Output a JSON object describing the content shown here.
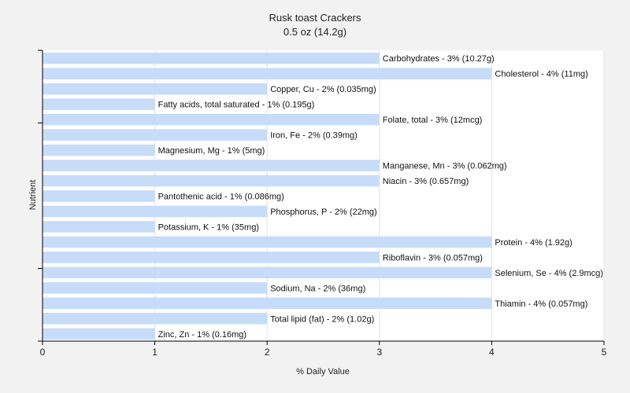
{
  "chart_data": {
    "type": "bar",
    "orientation": "horizontal",
    "title": "Rusk toast Crackers",
    "subtitle": "0.5 oz (14.2g)",
    "xlabel": "% Daily Value",
    "ylabel": "Nutrient",
    "xlim": [
      0,
      5
    ],
    "xticks": [
      0,
      1,
      2,
      3,
      4,
      5
    ],
    "grid": true,
    "bar_color": "#c6dcf9",
    "categories": [
      "Carbohydrates",
      "Cholesterol",
      "Copper, Cu",
      "Fatty acids, total saturated",
      "Folate, total",
      "Iron, Fe",
      "Magnesium, Mg",
      "Manganese, Mn",
      "Niacin",
      "Pantothenic acid",
      "Phosphorus, P",
      "Potassium, K",
      "Protein",
      "Riboflavin",
      "Selenium, Se",
      "Sodium, Na",
      "Thiamin",
      "Total lipid (fat)",
      "Zinc, Zn"
    ],
    "values": [
      3,
      4,
      2,
      1,
      3,
      2,
      1,
      3,
      3,
      1,
      2,
      1,
      4,
      3,
      4,
      2,
      4,
      2,
      1
    ],
    "labels": [
      "Carbohydrates - 3% (10.27g)",
      "Cholesterol - 4% (11mg)",
      "Copper, Cu - 2% (0.035mg)",
      "Fatty acids, total saturated - 1% (0.195g)",
      "Folate, total - 3% (12mcg)",
      "Iron, Fe - 2% (0.39mg)",
      "Magnesium, Mg - 1% (5mg)",
      "Manganese, Mn - 3% (0.062mg)",
      "Niacin - 3% (0.657mg)",
      "Pantothenic acid - 1% (0.086mg)",
      "Phosphorus, P - 2% (22mg)",
      "Potassium, K - 1% (35mg)",
      "Protein - 4% (1.92g)",
      "Riboflavin - 3% (0.057mg)",
      "Selenium, Se - 4% (2.9mcg)",
      "Sodium, Na - 2% (36mg)",
      "Thiamin - 4% (0.057mg)",
      "Total lipid (fat) - 2% (1.02g)",
      "Zinc, Zn - 1% (0.16mg)"
    ]
  }
}
